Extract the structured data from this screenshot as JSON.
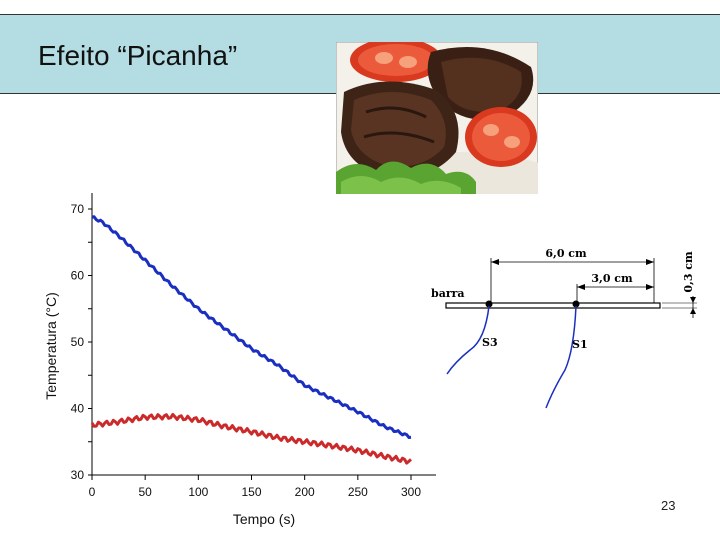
{
  "slide": {
    "title": "Efeito “Picanha”",
    "page_number": "23",
    "photo_icon": "steak-with-tomatoes-photo"
  },
  "diagram": {
    "bar_label": "barra",
    "sensor_1": "S1",
    "sensor_3": "S3",
    "dim_total": "6,0 cm",
    "dim_half": "3,0 cm",
    "dim_thickness": "0,3 cm"
  },
  "chart_data": {
    "type": "line",
    "xlabel": "Tempo (s)",
    "ylabel": "Temperatura (°C)",
    "xlim": [
      0,
      300
    ],
    "ylim": [
      30,
      70
    ],
    "xticks": [
      "0",
      "50",
      "100",
      "150",
      "200",
      "250",
      "300"
    ],
    "yticks": [
      "30",
      "40",
      "50",
      "60",
      "70"
    ],
    "grid": false,
    "legend": "none",
    "series": [
      {
        "color": "#1a2fc0",
        "x": [
          0,
          10,
          25,
          50,
          75,
          100,
          125,
          150,
          175,
          200,
          225,
          250,
          275,
          300
        ],
        "y": [
          68.8,
          68.0,
          66.0,
          62.3,
          58.5,
          55.0,
          52.0,
          49.0,
          46.5,
          43.5,
          41.5,
          39.5,
          37.3,
          35.7
        ]
      },
      {
        "color": "#cc2a2a",
        "x": [
          0,
          25,
          50,
          75,
          100,
          125,
          150,
          175,
          200,
          225,
          250,
          275,
          300
        ],
        "y": [
          37.5,
          38.0,
          38.7,
          38.8,
          38.3,
          37.3,
          36.5,
          35.6,
          35.0,
          34.4,
          33.7,
          32.8,
          32.0
        ]
      }
    ]
  }
}
